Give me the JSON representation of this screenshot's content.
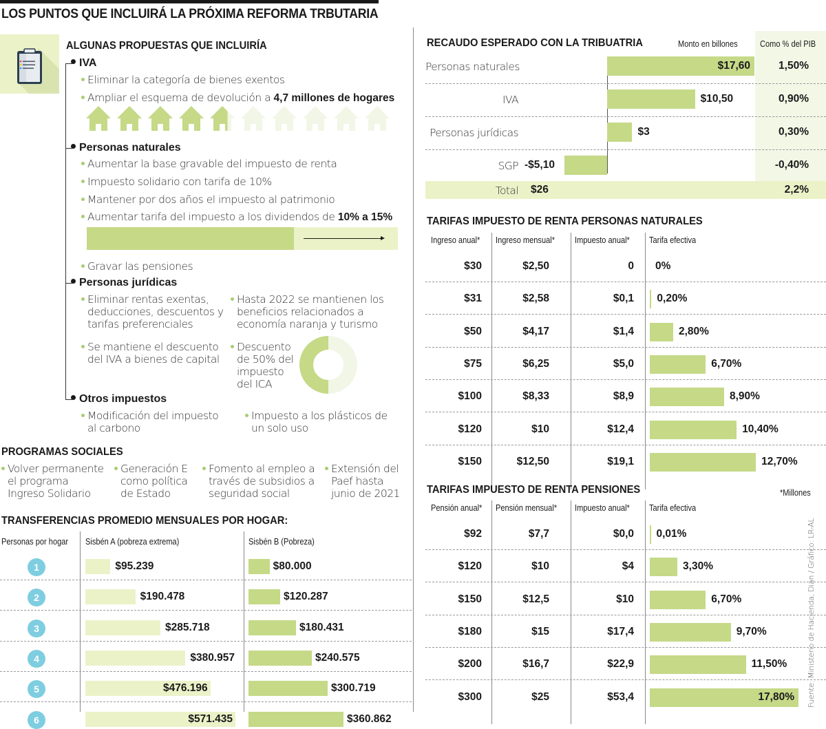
{
  "title": "LOS PUNTOS QUE INCLUIRÁ LA PRÓXIMA REFORMA TRBUTARIA",
  "propuestas": {
    "title": "ALGUNAS PROPUESTAS QUE INCLUIRÍA",
    "iva": {
      "label": "IVA",
      "items": [
        "Eliminar la categoría de bienes exentos",
        "Ampliar el esquema de devolución a "
      ],
      "highlight": "4,7 millones de hogares",
      "houses_total": 10,
      "houses_filled": 4.7
    },
    "naturales": {
      "label": "Personas naturales",
      "items": [
        "Aumentar la base gravable del impuesto de renta",
        "Impuesto solidario con tarifa de 10%",
        "Mantener por dos años el impuesto al patrimonio",
        "Aumentar tarifa del impuesto a los dividendos de "
      ],
      "highlight": "10% a 15%",
      "dividend_from": 10,
      "dividend_to": 15,
      "last_item": "Gravar las pensiones"
    },
    "juridicas": {
      "label": "Personas jurídicas",
      "items": [
        "Eliminar rentas exentas, deducciones, descuentos y tarifas preferenciales",
        "Hasta 2022 se mantienen los beneficios relacionados a economía naranja y turismo",
        "Se mantiene el descuento del IVA a bienes de capital",
        "Descuento de 50% del impuesto del ICA"
      ],
      "ica_discount_pct": 50
    },
    "otros": {
      "label": "Otros impuestos",
      "items": [
        "Modificación del impuesto al carbono",
        "Impuesto a los plásticos de un solo uso"
      ]
    }
  },
  "programas": {
    "title": "PROGRAMAS SOCIALES",
    "items": [
      "Volver permanente el programa Ingreso Solidario",
      "Generación E como política de Estado",
      "Fomento al empleo a través de subsidios a seguridad social",
      "Extensión del Paef hasta junio de 2021"
    ]
  },
  "transferencias": {
    "title": "TRANSFERENCIAS PROMEDIO MENSUALES POR HOGAR:",
    "col_personas": "Personas por hogar",
    "col_a": "Sisbén A (pobreza extrema)",
    "col_b": "Sisbén B (Pobreza)"
  },
  "recaudo": {
    "title": "RECAUDO ESPERADO CON LA TRIBUATRIA",
    "col_monto": "Monto en billones",
    "col_pib": "Como % del PIB",
    "total_label": "Total",
    "total_value": "$26",
    "total_pib": "2,2%"
  },
  "naturales_table": {
    "title": "TARIFAS IMPUESTO DE RENTA PERSONAS NATURALES",
    "headers": [
      "Ingreso anual*",
      "Ingreso mensual*",
      "Impuesto anual*",
      "Tarifa efectiva"
    ]
  },
  "pensiones_table": {
    "title": "TARIFAS IMPUESTO DE RENTA PENSIONES",
    "note": "*Millones",
    "headers": [
      "Pensión anual*",
      "Pensión mensual*",
      "Impuesto anual*",
      "Tarifa efectiva"
    ]
  },
  "source": "Fuente: Ministerio de Hacienda, Dian / Gráfico: LR-AL",
  "colors": {
    "green": "#c5d987",
    "light_green": "#ecf2c8",
    "faint_green": "#f1f6e6",
    "circle_blue": "#7ecde0"
  },
  "chart_data": [
    {
      "type": "bar",
      "title": "RECAUDO ESPERADO CON LA TRIBUATRIA",
      "xlabel": "Monto en billones",
      "categories": [
        "Personas naturales",
        "IVA",
        "Personas jurídicas",
        "SGP"
      ],
      "values": [
        17.6,
        10.5,
        3,
        -5.1
      ],
      "value_labels": [
        "$17,60",
        "$10,50",
        "$3",
        "-$5,10"
      ],
      "pib_pct_labels": [
        "1,50%",
        "0,90%",
        "0,30%",
        "-0,40%"
      ],
      "total": 26,
      "total_pib": 2.2
    },
    {
      "type": "table",
      "title": "TARIFAS IMPUESTO DE RENTA PERSONAS NATURALES",
      "rows": [
        {
          "anual": "$30",
          "mensual": "$2,50",
          "impuesto": "0",
          "tarifa_label": "0%",
          "tarifa": 0
        },
        {
          "anual": "$31",
          "mensual": "$2,58",
          "impuesto": "$0,1",
          "tarifa_label": "0,20%",
          "tarifa": 0.2
        },
        {
          "anual": "$50",
          "mensual": "$4,17",
          "impuesto": "$1,4",
          "tarifa_label": "2,80%",
          "tarifa": 2.8
        },
        {
          "anual": "$75",
          "mensual": "$6,25",
          "impuesto": "$5,0",
          "tarifa_label": "6,70%",
          "tarifa": 6.7
        },
        {
          "anual": "$100",
          "mensual": "$8,33",
          "impuesto": "$8,9",
          "tarifa_label": "8,90%",
          "tarifa": 8.9
        },
        {
          "anual": "$120",
          "mensual": "$10",
          "impuesto": "$12,4",
          "tarifa_label": "10,40%",
          "tarifa": 10.4
        },
        {
          "anual": "$150",
          "mensual": "$12,50",
          "impuesto": "$19,1",
          "tarifa_label": "12,70%",
          "tarifa": 12.7
        }
      ]
    },
    {
      "type": "table",
      "title": "TARIFAS IMPUESTO DE RENTA PENSIONES",
      "rows": [
        {
          "anual": "$92",
          "mensual": "$7,7",
          "impuesto": "$0,0",
          "tarifa_label": "0,01%",
          "tarifa": 0.01
        },
        {
          "anual": "$120",
          "mensual": "$10",
          "impuesto": "$4",
          "tarifa_label": "3,30%",
          "tarifa": 3.3
        },
        {
          "anual": "$150",
          "mensual": "$12,5",
          "impuesto": "$10",
          "tarifa_label": "6,70%",
          "tarifa": 6.7
        },
        {
          "anual": "$180",
          "mensual": "$15",
          "impuesto": "$17,4",
          "tarifa_label": "9,70%",
          "tarifa": 9.7
        },
        {
          "anual": "$200",
          "mensual": "$16,7",
          "impuesto": "$22,9",
          "tarifa_label": "11,50%",
          "tarifa": 11.5
        },
        {
          "anual": "$300",
          "mensual": "$25",
          "impuesto": "$53,4",
          "tarifa_label": "17,80%",
          "tarifa": 17.8
        }
      ]
    },
    {
      "type": "bar",
      "title": "TRANSFERENCIAS PROMEDIO MENSUALES POR HOGAR:",
      "categories": [
        "1",
        "2",
        "3",
        "4",
        "5",
        "6"
      ],
      "series": [
        {
          "name": "Sisbén A (pobreza extrema)",
          "values": [
            95239,
            190478,
            285718,
            380957,
            476196,
            571435
          ],
          "labels": [
            "$95.239",
            "$190.478",
            "$285.718",
            "$380.957",
            "$476.196",
            "$571.435"
          ]
        },
        {
          "name": "Sisbén B (Pobreza)",
          "values": [
            80000,
            120287,
            180431,
            240575,
            300719,
            360862
          ],
          "labels": [
            "$80.000",
            "$120.287",
            "$180.431",
            "$240.575",
            "$300.719",
            "$360.862"
          ]
        }
      ]
    }
  ]
}
